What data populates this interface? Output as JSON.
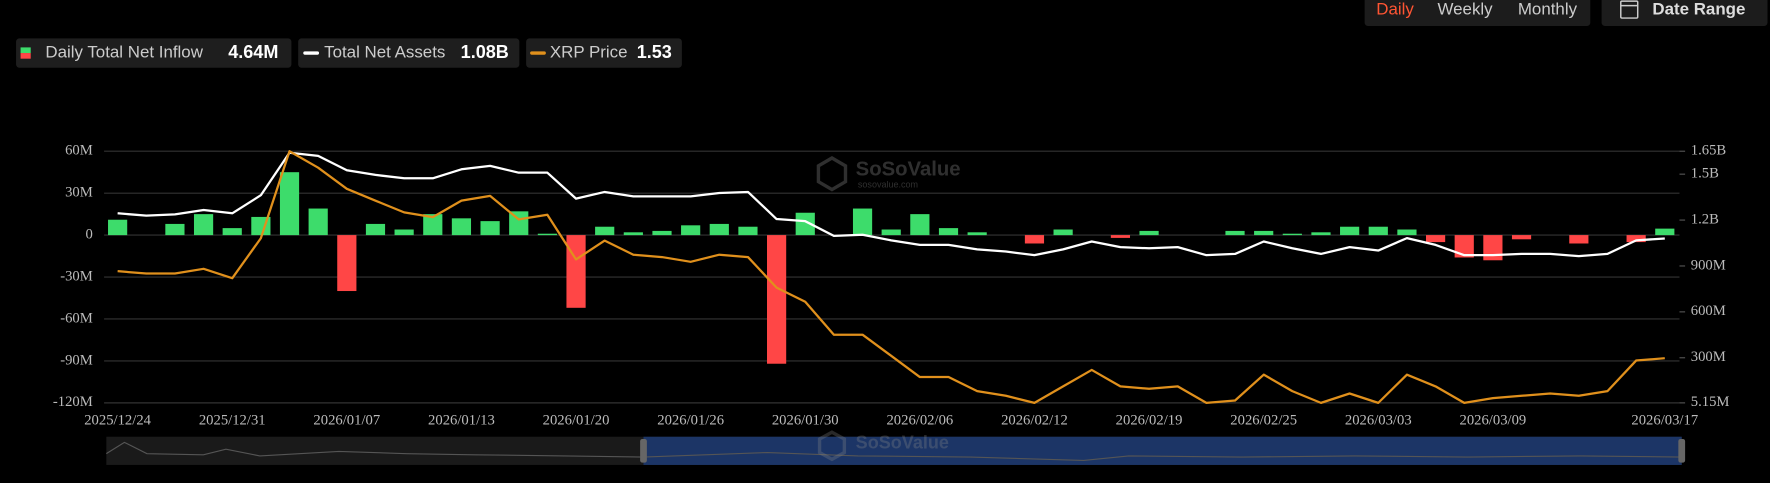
{
  "ui": {
    "range_buttons": [
      "Daily",
      "Weekly",
      "Monthly"
    ],
    "active_button": 0,
    "date_range": "Date Range",
    "watermark": "SoSoValue",
    "watermark_sub": "sosovalue.com"
  },
  "chart_data": {
    "type": "bar",
    "categories": [
      "2025/12/24",
      null,
      null,
      null,
      "2025/12/31",
      null,
      null,
      null,
      "2026/01/07",
      null,
      null,
      null,
      "2026/01/13",
      null,
      null,
      null,
      "2026/01/20",
      null,
      null,
      null,
      "2026/01/26",
      null,
      null,
      null,
      "2026/01/30",
      null,
      null,
      null,
      "2026/02/06",
      null,
      null,
      null,
      "2026/02/12",
      null,
      null,
      null,
      "2026/02/19",
      null,
      null,
      null,
      "2026/02/25",
      null,
      null,
      null,
      "2026/03/03",
      null,
      null,
      null,
      "2026/03/09",
      null,
      null,
      null,
      null,
      null,
      "2026/03/17"
    ],
    "series": [
      {
        "name": "Daily Total Net Inflow",
        "type": "bar",
        "latest_label": "4.64M",
        "color": "#3ddc6b",
        "negative_color": "#ff4646",
        "values": [
          11000000,
          0,
          8000000,
          15000000,
          5000000,
          13000000,
          45000000,
          19000000,
          -40000000,
          8000000,
          4000000,
          15000000,
          12000000,
          10000000,
          17000000,
          1000000,
          -52000000,
          6000000,
          2000000,
          3000000,
          7000000,
          8000000,
          6000000,
          -92000000,
          16000000,
          0,
          19000000,
          4000000,
          15000000,
          5000000,
          2000000,
          0,
          -6000000,
          4000000,
          0,
          -2000000,
          3000000,
          0,
          0,
          3000000,
          3000000,
          1000000,
          2000000,
          6000000,
          6000000,
          4000000,
          -5000000,
          -16000000,
          -18000000,
          -3000000,
          0,
          -6000000,
          0,
          -5000000,
          4640000
        ]
      },
      {
        "name": "Total Net Assets",
        "type": "line",
        "axis": "y2",
        "latest_label": "1.08B",
        "color": "#ffffff",
        "values": [
          1244000000,
          1229000000,
          1237000000,
          1266000000,
          1244000000,
          1362000000,
          1640000000,
          1620000000,
          1525000000,
          1495000000,
          1473000000,
          1473000000,
          1532000000,
          1554000000,
          1510000000,
          1510000000,
          1340000000,
          1384000000,
          1355000000,
          1355000000,
          1355000000,
          1377000000,
          1384000000,
          1207000000,
          1193000000,
          1097000000,
          1104000000,
          1067000000,
          1038000000,
          1038000000,
          1008000000,
          994000000,
          971000000,
          1008000000,
          1060000000,
          1023000000,
          1016000000,
          1023000000,
          971000000,
          979000000,
          1060000000,
          1016000000,
          979000000,
          1023000000,
          1001000000,
          1082000000,
          1038000000,
          971000000,
          971000000,
          979000000,
          979000000,
          964000000,
          979000000,
          1067000000,
          1080000000
        ]
      },
      {
        "name": "XRP Price",
        "type": "line",
        "axis": "y3",
        "latest_label": "1.53",
        "color": "#e0901c",
        "values": [
          1.9,
          1.89,
          1.89,
          1.91,
          1.87,
          2.04,
          2.41,
          2.34,
          2.25,
          2.2,
          2.15,
          2.13,
          2.2,
          2.22,
          2.12,
          2.14,
          1.95,
          2.03,
          1.97,
          1.96,
          1.94,
          1.97,
          1.96,
          1.83,
          1.77,
          1.63,
          1.63,
          1.54,
          1.45,
          1.45,
          1.39,
          1.37,
          1.34,
          1.41,
          1.48,
          1.41,
          1.4,
          1.41,
          1.34,
          1.35,
          1.46,
          1.39,
          1.34,
          1.38,
          1.34,
          1.46,
          1.41,
          1.34,
          1.36,
          1.37,
          1.38,
          1.37,
          1.39,
          1.52,
          1.53
        ]
      }
    ],
    "ylim": [
      -120000000,
      60000000
    ],
    "yticks": [
      {
        "value": -120000000,
        "label": "-120M"
      },
      {
        "value": -90000000,
        "label": "-90M"
      },
      {
        "value": -60000000,
        "label": "-60M"
      },
      {
        "value": -30000000,
        "label": "-30M"
      },
      0,
      {
        "value": 30000000,
        "label": "30M"
      },
      {
        "value": 60000000,
        "label": "60M"
      }
    ],
    "y2lim": [
      5150000,
      1650000000
    ],
    "y2ticks": [
      {
        "value": 5150000,
        "label": "5.15M"
      },
      {
        "value": 300000000,
        "label": "300M"
      },
      {
        "value": 600000000,
        "label": "600M"
      },
      {
        "value": 900000000,
        "label": "900M"
      },
      {
        "value": 1200000000,
        "label": "1.2B"
      },
      {
        "value": 1500000000,
        "label": "1.5B"
      },
      {
        "value": 1650000000,
        "label": "1.65B"
      }
    ],
    "y3lim": [
      1.34,
      2.41
    ],
    "grid": true
  }
}
